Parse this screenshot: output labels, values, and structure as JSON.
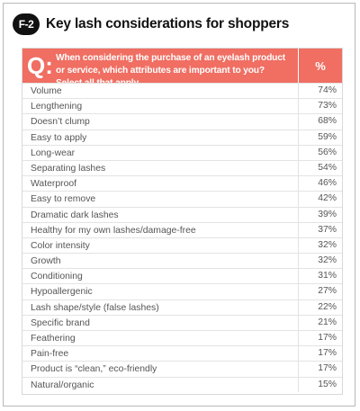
{
  "figure": {
    "badge": "F-2",
    "title": "Key lash considerations for shoppers"
  },
  "colors": {
    "header_bg": "#f06e62",
    "badge_bg": "#111111",
    "row_text": "#555555"
  },
  "chart_data": {
    "type": "table",
    "question_marker": "Q:",
    "question": "When considering the purchase of an eyelash product or service, which attributes are important to you? Select all that apply.",
    "value_header": "%",
    "rows": [
      {
        "label": "Volume",
        "value": "74%"
      },
      {
        "label": "Lengthening",
        "value": "73%"
      },
      {
        "label": "Doesn’t clump",
        "value": "68%"
      },
      {
        "label": "Easy to apply",
        "value": "59%"
      },
      {
        "label": "Long-wear",
        "value": "56%"
      },
      {
        "label": "Separating lashes",
        "value": "54%"
      },
      {
        "label": "Waterproof",
        "value": "46%"
      },
      {
        "label": "Easy to remove",
        "value": "42%"
      },
      {
        "label": "Dramatic dark lashes",
        "value": "39%"
      },
      {
        "label": "Healthy for my own lashes/damage-free",
        "value": "37%"
      },
      {
        "label": "Color intensity",
        "value": "32%"
      },
      {
        "label": "Growth",
        "value": "32%"
      },
      {
        "label": "Conditioning",
        "value": "31%"
      },
      {
        "label": "Hypoallergenic",
        "value": "27%"
      },
      {
        "label": "Lash shape/style (false lashes)",
        "value": "22%"
      },
      {
        "label": "Specific brand",
        "value": "21%"
      },
      {
        "label": "Feathering",
        "value": "17%"
      },
      {
        "label": "Pain-free",
        "value": "17%"
      },
      {
        "label": "Product is “clean,” eco-friendly",
        "value": "17%"
      },
      {
        "label": "Natural/organic",
        "value": "15%"
      }
    ]
  }
}
